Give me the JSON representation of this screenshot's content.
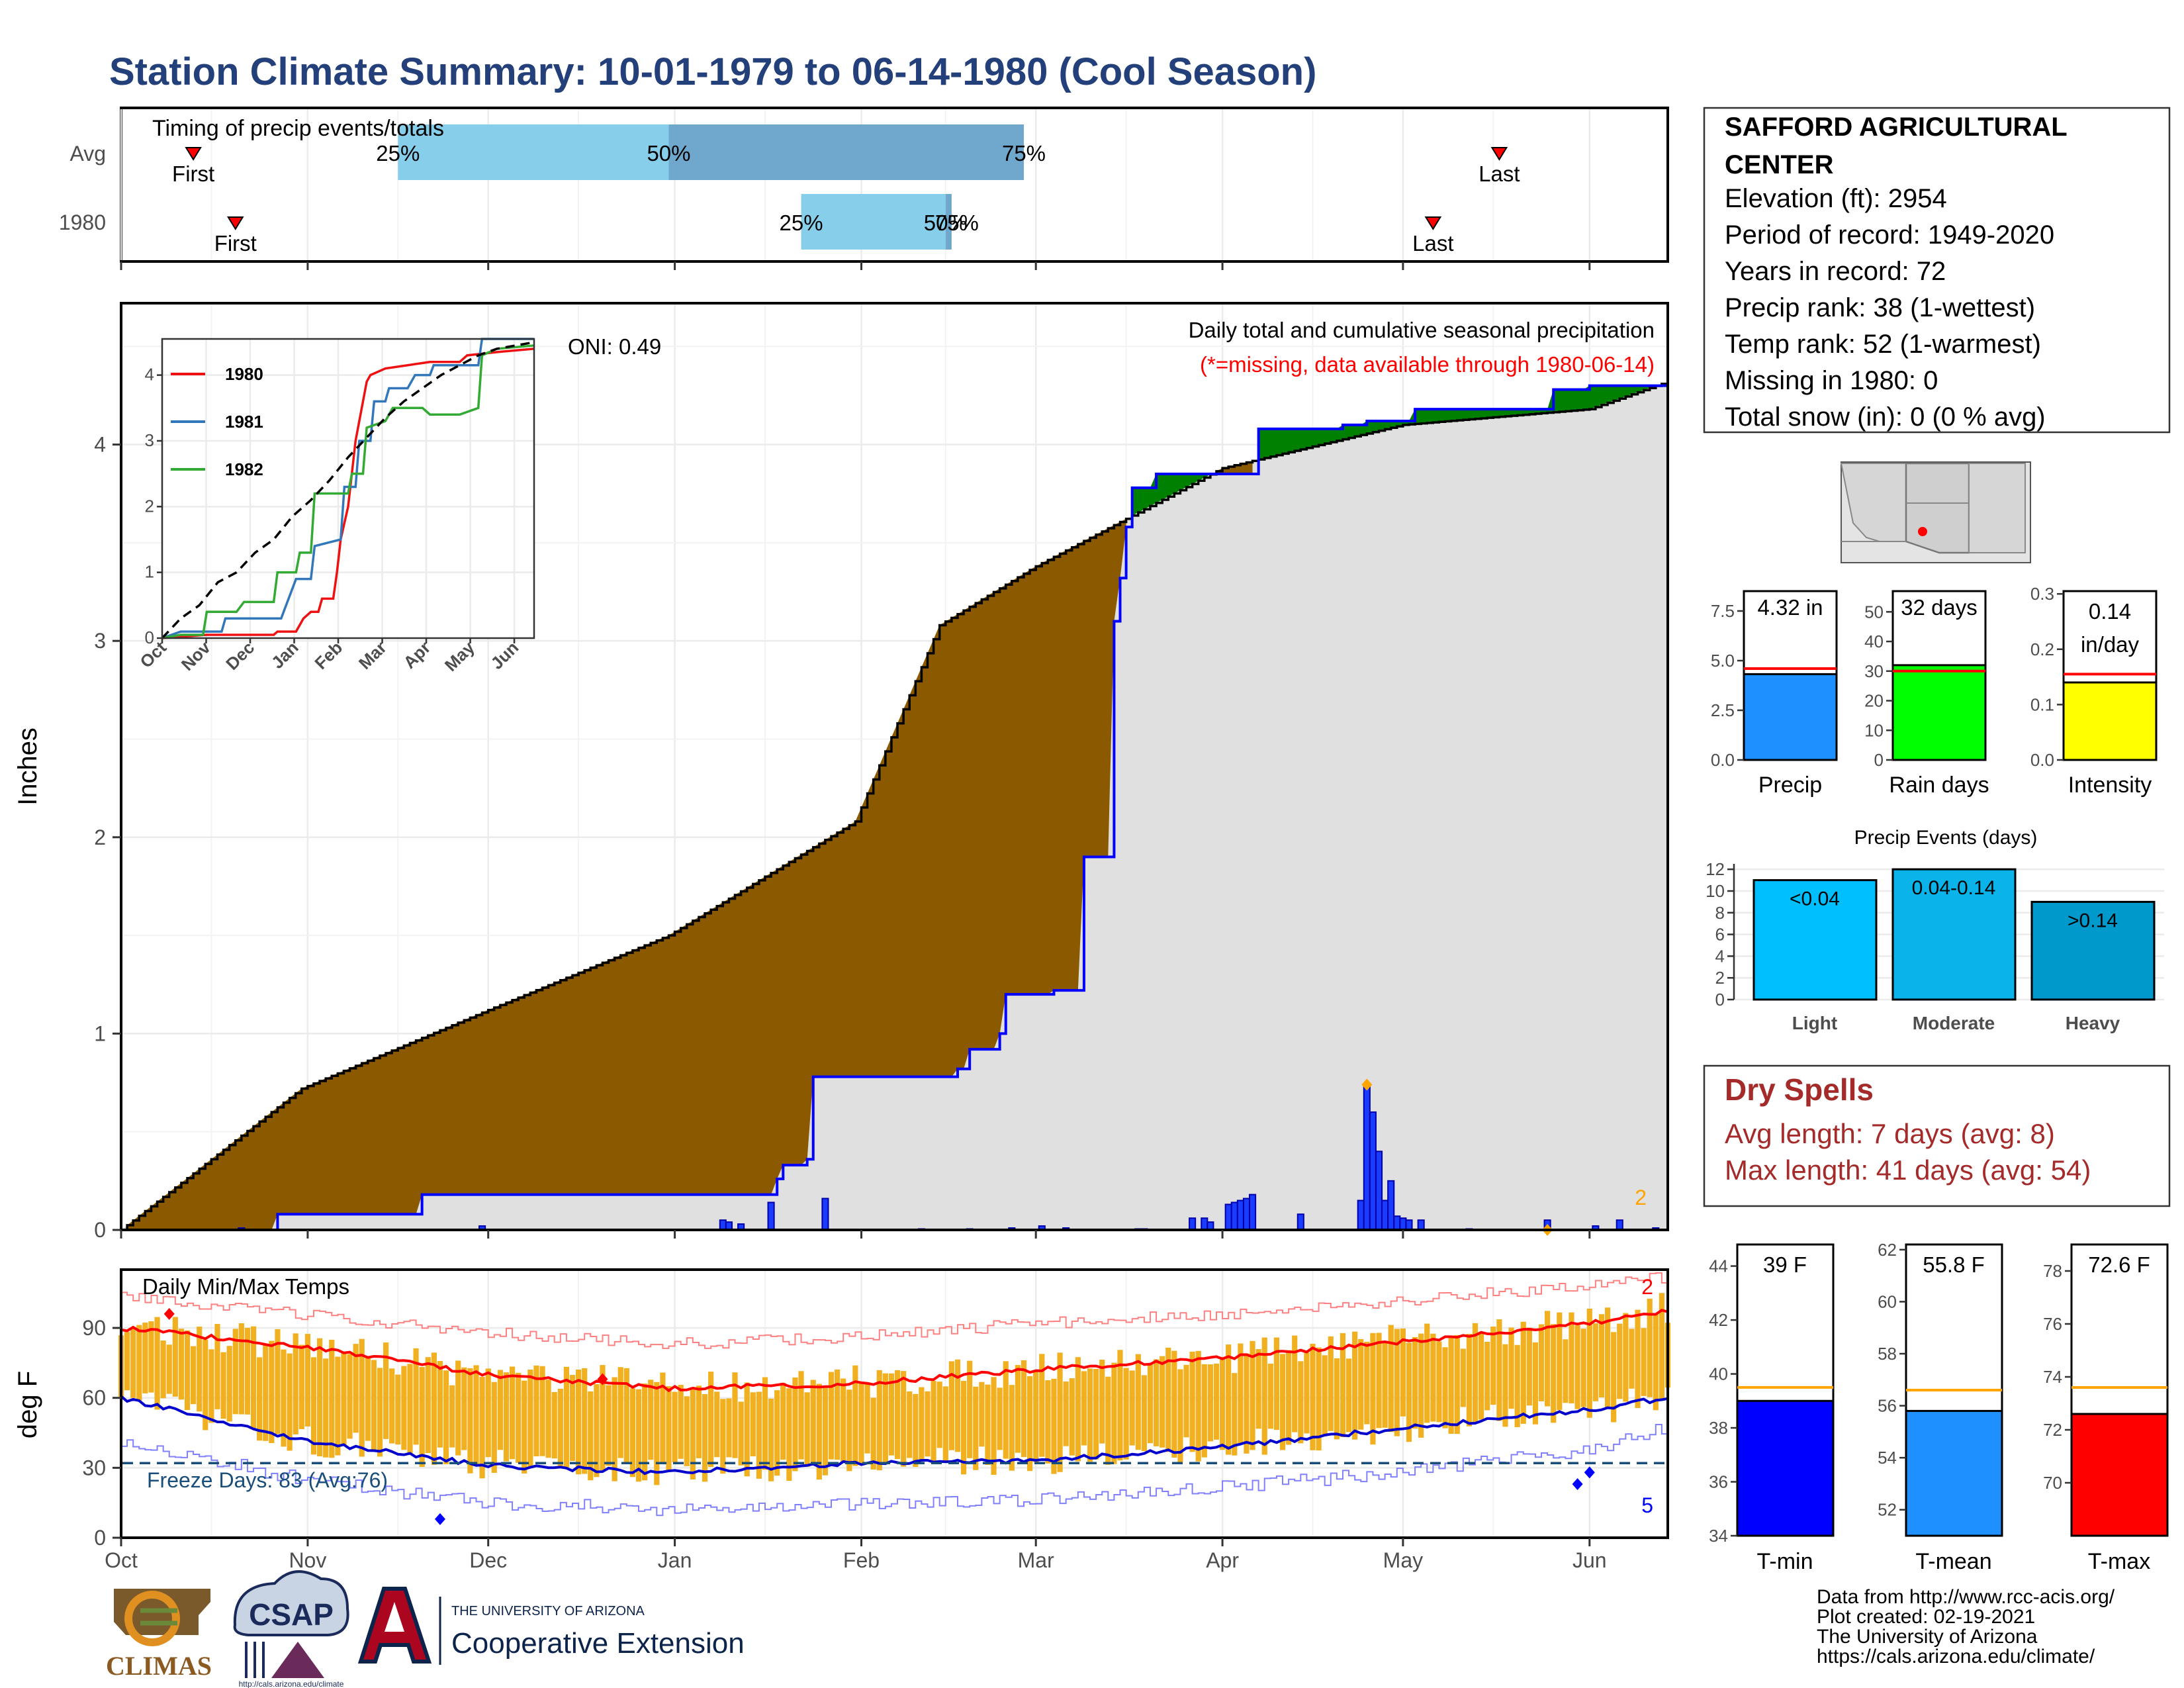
{
  "title": "Station Climate Summary: 10-01-1979 to 06-14-1980 (Cool Season)",
  "station": {
    "name_line1": "SAFFORD AGRICULTURAL",
    "name_line2": "CENTER",
    "elevation": "Elevation (ft): 2954",
    "period": "Period of record: 1949-2020",
    "years": "Years in record: 72",
    "precip_rank": "Precip rank: 38 (1-wettest)",
    "temp_rank": "Temp rank: 52 (1-warmest)",
    "missing": "Missing in 1980: 0",
    "snow": "Total snow (in): 0 (0 % avg)"
  },
  "timing": {
    "title": "Timing of precip events/totals",
    "rows": [
      "Avg",
      "1980"
    ],
    "first_label": "First",
    "last_label": "Last",
    "avg": {
      "first": "1979-10-13",
      "p25": "1979-11-16",
      "p50": "1979-12-31",
      "p75": "1980-02-28",
      "last": "1980-05-17"
    },
    "year": {
      "first": "1979-10-20",
      "p25": "1980-01-22",
      "p50": "1980-02-15",
      "p75": "1980-02-16",
      "last": "1980-05-06"
    },
    "p25_label": "25%",
    "p50_label": "50%",
    "p75_label": "75%",
    "colors": {
      "light": "#87ceeb",
      "dark": "#6fa8cc",
      "marker": "#ff0000"
    }
  },
  "precip_panel": {
    "ylabel": "Inches",
    "annotation1": "Daily total and cumulative seasonal precipitation",
    "annotation2": "(*=missing, data available through 1980-06-14)",
    "oni": "ONI: 0.49",
    "corner_value": "2",
    "yticks": [
      0,
      1,
      2,
      3,
      4
    ],
    "ylim": [
      0,
      4.72
    ],
    "colors": {
      "above": "#008000",
      "below": "#8b5a00",
      "avg_fill": "#e0e0e0",
      "obs": "#0000ff",
      "daily": "#0000ff",
      "corner": "#ffa500"
    }
  },
  "temp_panel": {
    "title": "Daily Min/Max Temps",
    "ylabel": "deg F",
    "freeze_text": "Freeze Days: 83 (Avg:76)",
    "corner_top": "2",
    "corner_bottom": "5",
    "yticks": [
      0,
      30,
      60,
      90
    ],
    "ylim": [
      0,
      115
    ],
    "freeze_line": 32,
    "colors": {
      "bars": "#f0b020",
      "max_avg": "#ff0000",
      "min_avg": "#0000cc",
      "max_rec": "#ff8080",
      "min_rec": "#8080ff",
      "freeze": "#1a4e7a"
    }
  },
  "x_axis": {
    "labels": [
      "Oct",
      "Nov",
      "Dec",
      "Jan",
      "Feb",
      "Mar",
      "Apr",
      "May",
      "Jun"
    ],
    "start": "1979-10-01",
    "end": "1980-06-14"
  },
  "inset": {
    "series": [
      {
        "name": "1980",
        "color": "#ee1111"
      },
      {
        "name": "1981",
        "color": "#3377bb"
      },
      {
        "name": "1982",
        "color": "#33aa33"
      }
    ],
    "xlabels": [
      "Oct",
      "Nov",
      "Dec",
      "Jan",
      "Feb",
      "Mar",
      "Apr",
      "May",
      "Jun"
    ],
    "yticks": [
      0,
      1,
      2,
      3,
      4
    ]
  },
  "bar_charts": {
    "precip": {
      "label": "Precip",
      "value_label": "4.32 in",
      "value": 4.32,
      "avg": 4.6,
      "ymax": 8.5,
      "yticks": [
        "0.0",
        "2.5",
        "5.0",
        "7.5"
      ],
      "ytick_vals": [
        0,
        2.5,
        5.0,
        7.5
      ],
      "color": "#1e90ff"
    },
    "rain_days": {
      "label": "Rain days",
      "value_label": "32 days",
      "value": 32,
      "avg": 30,
      "ymax": 57,
      "yticks": [
        "0",
        "10",
        "20",
        "30",
        "40",
        "50"
      ],
      "ytick_vals": [
        0,
        10,
        20,
        30,
        40,
        50
      ],
      "color": "#00ff00"
    },
    "intensity": {
      "label": "Intensity",
      "value_label1": "0.14",
      "value_label2": "in/day",
      "value": 0.14,
      "avg": 0.155,
      "ymax": 0.305,
      "yticks": [
        "0.0",
        "0.1",
        "0.2",
        "0.3"
      ],
      "ytick_vals": [
        0,
        0.1,
        0.2,
        0.3
      ],
      "color": "#ffff00"
    }
  },
  "precip_events": {
    "title": "Precip Events (days)",
    "categories": [
      "Light",
      "Moderate",
      "Heavy"
    ],
    "bar_labels": [
      "<0.04",
      "0.04-0.14",
      ">0.14"
    ],
    "values": [
      11,
      12,
      9
    ],
    "yticks": [
      0,
      2,
      4,
      6,
      8,
      10,
      12
    ],
    "colors": [
      "#00bfff",
      "#0ab4ea",
      "#0099cc"
    ]
  },
  "dry_spells": {
    "title": "Dry Spells",
    "avg_length": "Avg length: 7 days (avg: 8)",
    "max_length": "Max length: 41 days (avg: 54)"
  },
  "temp_bars": {
    "tmin": {
      "label": "T-min",
      "value_label": "39 F",
      "value": 39,
      "avg": 39.5,
      "ymin": 34,
      "ymax": 44.8,
      "yticks": [
        34,
        36,
        38,
        40,
        42,
        44
      ],
      "color": "#0000ff"
    },
    "tmean": {
      "label": "T-mean",
      "value_label": "55.8 F",
      "value": 55.8,
      "avg": 56.6,
      "ymin": 51,
      "ymax": 62.2,
      "yticks": [
        52,
        54,
        56,
        58,
        60,
        62
      ],
      "color": "#1e90ff"
    },
    "tmax": {
      "label": "T-max",
      "value_label": "72.6 F",
      "value": 72.6,
      "avg": 73.6,
      "ymin": 68,
      "ymax": 79,
      "yticks": [
        70,
        72,
        74,
        76,
        78
      ],
      "color": "#ff0000"
    },
    "avg_color": "#ffa500"
  },
  "footer": {
    "line1": "Data from http://www.rcc-acis.org/",
    "line2": "Plot created: 02-19-2021",
    "line3": "The University of Arizona",
    "line4": "https://cals.arizona.edu/climate/"
  },
  "logos": {
    "climas": "CLIMAS",
    "csap": "CSAP",
    "csap_url": "http://cals.arizona.edu/climate",
    "ua_small": "THE UNIVERSITY OF ARIZONA",
    "ua_big": "Cooperative Extension"
  }
}
